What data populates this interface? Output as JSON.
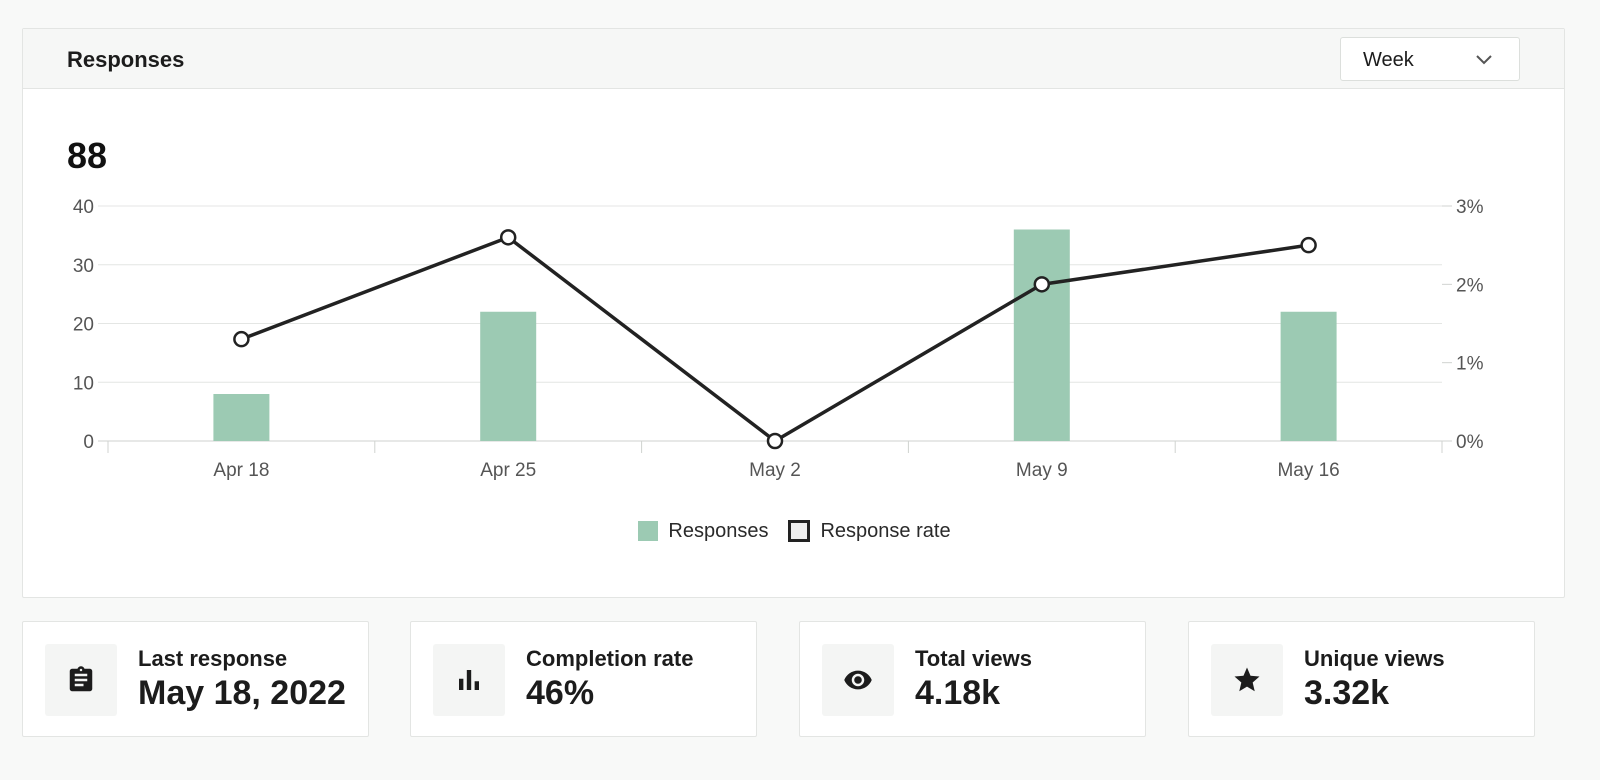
{
  "panel": {
    "title": "Responses",
    "period_select": {
      "value": "Week",
      "icon": "chevron-down-icon"
    },
    "total": "88"
  },
  "chart_data": {
    "type": "bar",
    "categories": [
      "Apr 18",
      "Apr 25",
      "May 2",
      "May 9",
      "May 16"
    ],
    "series": [
      {
        "name": "Responses",
        "type": "bar",
        "axis": "left",
        "values": [
          8,
          22,
          0,
          36,
          22
        ],
        "color": "#9ccab3"
      },
      {
        "name": "Response rate",
        "type": "line",
        "axis": "right",
        "values": [
          1.3,
          2.6,
          0,
          2.0,
          2.5
        ],
        "color": "#222222"
      }
    ],
    "y_left": {
      "ticks": [
        "0",
        "10",
        "20",
        "30",
        "40"
      ],
      "range": [
        0,
        40
      ]
    },
    "y_right": {
      "ticks": [
        "0%",
        "1%",
        "2%",
        "3%"
      ],
      "range": [
        0,
        3
      ]
    },
    "grid": true,
    "legend_position": "bottom-center"
  },
  "legend": [
    {
      "label": "Responses",
      "swatch": "bar"
    },
    {
      "label": "Response rate",
      "swatch": "line"
    }
  ],
  "stats": [
    {
      "label": "Last response",
      "value": "May 18, 2022",
      "icon": "clipboard-icon"
    },
    {
      "label": "Completion rate",
      "value": "46%",
      "icon": "bar-chart-icon"
    },
    {
      "label": "Total views",
      "value": "4.18k",
      "icon": "eye-icon"
    },
    {
      "label": "Unique views",
      "value": "3.32k",
      "icon": "star-icon"
    }
  ]
}
